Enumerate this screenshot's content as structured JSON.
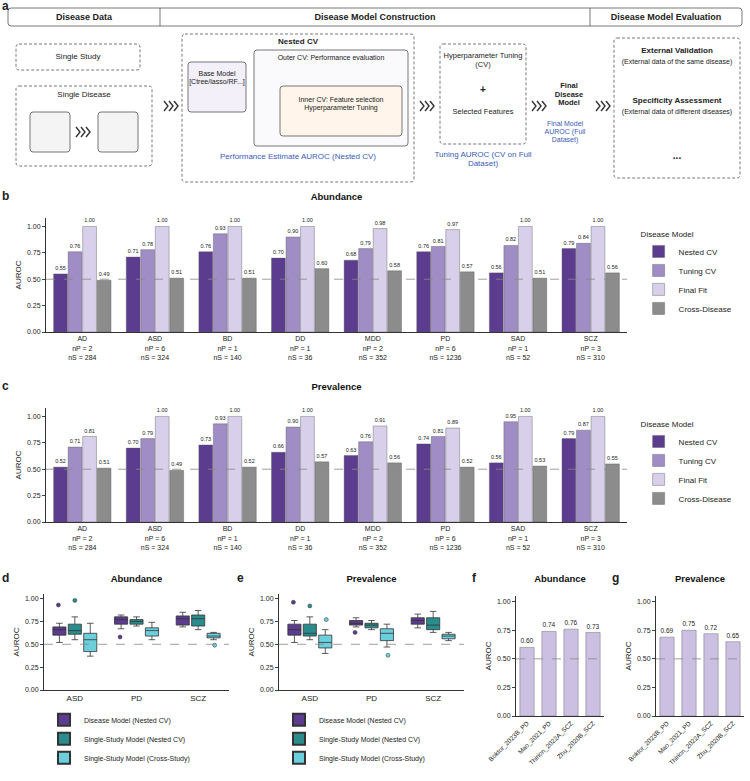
{
  "panel_a": {
    "letter": "a",
    "headers": [
      "Disease Data",
      "Disease Model Construction",
      "Disease Model Evaluation"
    ],
    "disease_data": {
      "single_study": "Single Study",
      "single_disease": "Single Disease"
    },
    "construction": {
      "nested_cv": "Nested CV",
      "base_model": "Base Model [Ctree/lasso/RF...]",
      "outer_cv": "Outer CV: Performance evaluation",
      "inner_cv": "Inner CV: Feature selection Hyperparameter Tuning",
      "nested_caption": "Performance Estimate AUROC (Nested CV)",
      "tuning": "Hyperparameter Tuning (CV)",
      "plus": "+",
      "features": "Selected Features",
      "tuning_caption": "Tuning AUROC (CV on Full Dataset)",
      "final": "Final Disease Model",
      "final_caption": "Final Model AUROC (Full Dataset)"
    },
    "evaluation": {
      "external": "External Validation",
      "external_desc": "(External data of the same disease)",
      "specificity": "Specificity Assessment",
      "specificity_desc": "(External data of different diseases)",
      "more": "..."
    }
  },
  "chart_data": [
    {
      "panel": "b",
      "type": "bar",
      "title": "Abundance",
      "y_label": "AUROC",
      "legend_title": "Disease Model",
      "legend": "right",
      "data_labels": true,
      "grid": false,
      "hline": 0.5,
      "categories": [
        "AD\nnP = 2\nnS = 284",
        "ASD\nnP = 6\nnS = 324",
        "BD\nnP = 1\nnS = 140",
        "DD\nnP = 1\nnS = 36",
        "MDD\nnP = 2\nnS = 352",
        "PD\nnP = 6\nnS = 1236",
        "SAD\nnP = 1\nnS = 52",
        "SCZ\nnP = 3\nnS = 310"
      ],
      "ylim": [
        0,
        1.08
      ],
      "yticks": [
        {
          "value": 0,
          "label": "0.00"
        },
        {
          "value": 0.25,
          "label": "0.25"
        },
        {
          "value": 0.5,
          "label": "0.50"
        },
        {
          "value": 0.75,
          "label": "0.75"
        },
        {
          "value": 1,
          "label": "1.00"
        }
      ],
      "series": [
        {
          "name": "Nested CV",
          "color": "#5b3c8f",
          "values": [
            0.55,
            0.71,
            0.76,
            0.7,
            0.68,
            0.76,
            0.56,
            0.79
          ],
          "value_labels": [
            "0.55",
            "0.71",
            "0.76",
            "0.70",
            "0.68",
            "0.76",
            "0.56",
            "0.79"
          ]
        },
        {
          "name": "Tuning CV",
          "color": "#a08dc6",
          "values": [
            0.76,
            0.78,
            0.93,
            0.9,
            0.79,
            0.81,
            0.82,
            0.84
          ],
          "value_labels": [
            "0.76",
            "0.78",
            "0.93",
            "0.90",
            "0.79",
            "0.81",
            "0.82",
            "0.84"
          ]
        },
        {
          "name": "Final Fit",
          "color": "#d8d0ea",
          "values": [
            1,
            1,
            1,
            1,
            0.98,
            0.97,
            1,
            1
          ],
          "value_labels": [
            "1.00",
            "1.00",
            "1.00",
            "1.00",
            "0.98",
            "0.97",
            "1.00",
            "1.00"
          ]
        },
        {
          "name": "Cross-Disease",
          "color": "#8c8c8c",
          "values": [
            0.49,
            0.51,
            0.51,
            0.6,
            0.58,
            0.57,
            0.51,
            0.56
          ],
          "value_labels": [
            "0.49",
            "0.51",
            "0.51",
            "0.60",
            "0.58",
            "0.57",
            "0.51",
            "0.56"
          ]
        }
      ]
    },
    {
      "panel": "c",
      "type": "bar",
      "title": "Prevalence",
      "y_label": "AUROC",
      "legend_title": "Disease Model",
      "legend": "right",
      "data_labels": true,
      "grid": false,
      "hline": 0.5,
      "categories": [
        "AD\nnP = 2\nnS = 284",
        "ASD\nnP = 6\nnS = 324",
        "BD\nnP = 1\nnS = 140",
        "DD\nnP = 1\nnS = 36",
        "MDD\nnP = 2\nnS = 352",
        "PD\nnP = 6\nnS = 1236",
        "SAD\nnP = 1\nnS = 52",
        "SCZ\nnP = 3\nnS = 310"
      ],
      "ylim": [
        0,
        1.08
      ],
      "yticks": [
        {
          "value": 0,
          "label": "0.00"
        },
        {
          "value": 0.25,
          "label": "0.25"
        },
        {
          "value": 0.5,
          "label": "0.50"
        },
        {
          "value": 0.75,
          "label": "0.75"
        },
        {
          "value": 1,
          "label": "1.00"
        }
      ],
      "series": [
        {
          "name": "Nested CV",
          "color": "#5b3c8f",
          "values": [
            0.52,
            0.7,
            0.73,
            0.66,
            0.63,
            0.74,
            0.56,
            0.79
          ],
          "value_labels": [
            "0.52",
            "0.70",
            "0.73",
            "0.66",
            "0.63",
            "0.74",
            "0.56",
            "0.79"
          ]
        },
        {
          "name": "Tuning CV",
          "color": "#a08dc6",
          "values": [
            0.71,
            0.79,
            0.93,
            0.9,
            0.76,
            0.81,
            0.95,
            0.87
          ],
          "value_labels": [
            "0.71",
            "0.79",
            "0.93",
            "0.90",
            "0.76",
            "0.81",
            "0.95",
            "0.87"
          ]
        },
        {
          "name": "Final Fit",
          "color": "#d8d0ea",
          "values": [
            0.81,
            1,
            1,
            1,
            0.91,
            0.89,
            1,
            1
          ],
          "value_labels": [
            "0.81",
            "1.00",
            "1.00",
            "1.00",
            "0.91",
            "0.89",
            "1.00",
            "1.00"
          ]
        },
        {
          "name": "Cross-Disease",
          "color": "#8c8c8c",
          "values": [
            0.51,
            0.49,
            0.52,
            0.57,
            0.56,
            0.52,
            0.53,
            0.55
          ],
          "value_labels": [
            "0.51",
            "0.49",
            "0.52",
            "0.57",
            "0.56",
            "0.52",
            "0.53",
            "0.55"
          ]
        }
      ]
    },
    {
      "panel": "d",
      "type": "box",
      "title": "Abundance",
      "y_label": "AUROC",
      "legend": "bottom",
      "grid": false,
      "hline": 0.5,
      "categories": [
        "ASD",
        "PD",
        "SCZ"
      ],
      "ylim": [
        0,
        1.05
      ],
      "yticks": [
        {
          "value": 0,
          "label": "0.00"
        },
        {
          "value": 0.25,
          "label": "0.25"
        },
        {
          "value": 0.5,
          "label": "0.50"
        },
        {
          "value": 0.75,
          "label": "0.75"
        },
        {
          "value": 1,
          "label": "1.00"
        }
      ],
      "series": [
        {
          "name": "Disease Model (Nested CV)",
          "color": "#5b3c8f",
          "q1": [
            0.6,
            0.72,
            0.71
          ],
          "median": [
            0.66,
            0.77,
            0.78
          ],
          "q3": [
            0.69,
            0.8,
            0.81
          ],
          "lowerfence": [
            0.52,
            0.67,
            0.69
          ],
          "upperfence": [
            0.73,
            0.82,
            0.85
          ],
          "outliers": [
            [
              0.93
            ],
            [
              0.58
            ],
            []
          ]
        },
        {
          "name": "Single-Study Model (Nested CV)",
          "color": "#2a8c8c",
          "q1": [
            0.61,
            0.72,
            0.7
          ],
          "median": [
            0.65,
            0.75,
            0.78
          ],
          "q3": [
            0.72,
            0.77,
            0.82
          ],
          "lowerfence": [
            0.55,
            0.7,
            0.66
          ],
          "upperfence": [
            0.8,
            0.8,
            0.87
          ],
          "outliers": [
            [
              0.98
            ],
            [],
            []
          ]
        },
        {
          "name": "Single-Study Model (Cross-Study)",
          "color": "#6ccfdc",
          "q1": [
            0.42,
            0.59,
            0.57
          ],
          "median": [
            0.55,
            0.65,
            0.59
          ],
          "q3": [
            0.62,
            0.68,
            0.62
          ],
          "lowerfence": [
            0.37,
            0.55,
            0.55
          ],
          "upperfence": [
            0.73,
            0.74,
            0.63
          ],
          "outliers": [
            [],
            [],
            [
              0.49
            ]
          ]
        }
      ]
    },
    {
      "panel": "e",
      "type": "box",
      "title": "Prevalence",
      "y_label": "AUROC",
      "legend": "bottom",
      "grid": false,
      "hline": 0.5,
      "categories": [
        "ASD",
        "PD",
        "SCZ"
      ],
      "ylim": [
        0,
        1.05
      ],
      "yticks": [
        {
          "value": 0,
          "label": "0.00"
        },
        {
          "value": 0.25,
          "label": "0.25"
        },
        {
          "value": 0.5,
          "label": "0.50"
        },
        {
          "value": 0.75,
          "label": "0.75"
        },
        {
          "value": 1,
          "label": "1.00"
        }
      ],
      "series": [
        {
          "name": "Disease Model (Nested CV)",
          "color": "#5b3c8f",
          "q1": [
            0.6,
            0.71,
            0.72
          ],
          "median": [
            0.66,
            0.73,
            0.76
          ],
          "q3": [
            0.72,
            0.76,
            0.79
          ],
          "lowerfence": [
            0.52,
            0.69,
            0.68
          ],
          "upperfence": [
            0.76,
            0.79,
            0.83
          ],
          "outliers": [
            [
              0.96
            ],
            [
              0.63
            ],
            []
          ]
        },
        {
          "name": "Single-Study Model (Nested CV)",
          "color": "#2a8c8c",
          "q1": [
            0.59,
            0.68,
            0.66
          ],
          "median": [
            0.62,
            0.71,
            0.71
          ],
          "q3": [
            0.72,
            0.73,
            0.79
          ],
          "lowerfence": [
            0.55,
            0.66,
            0.63
          ],
          "upperfence": [
            0.8,
            0.76,
            0.86
          ],
          "outliers": [
            [
              0.92
            ],
            [],
            []
          ]
        },
        {
          "name": "Single-Study Model (Cross-Study)",
          "color": "#6ccfdc",
          "q1": [
            0.46,
            0.54,
            0.56
          ],
          "median": [
            0.52,
            0.62,
            0.59
          ],
          "q3": [
            0.6,
            0.67,
            0.61
          ],
          "lowerfence": [
            0.4,
            0.47,
            0.54
          ],
          "upperfence": [
            0.66,
            0.72,
            0.63
          ],
          "outliers": [
            [
              0.77
            ],
            [
              0.38
            ],
            []
          ]
        }
      ]
    },
    {
      "panel": "f",
      "type": "bar",
      "title": "Abundance",
      "y_label": "AUROC",
      "data_labels": true,
      "grid": false,
      "hline": 0.5,
      "color": "#cbc0e2",
      "categories": [
        "Boktor_2023B_PD",
        "Mao_2021_PD",
        "Thirion_2022A_SCZ",
        "Zhu_2020B_SCZ"
      ],
      "ylim": [
        0,
        1.05
      ],
      "yticks": [
        {
          "value": 0,
          "label": "0.00"
        },
        {
          "value": 0.25,
          "label": "0.25"
        },
        {
          "value": 0.5,
          "label": "0.50"
        },
        {
          "value": 0.75,
          "label": "0.75"
        },
        {
          "value": 1,
          "label": "1.00"
        }
      ],
      "values": [
        0.6,
        0.74,
        0.76,
        0.73
      ],
      "value_labels": [
        "0.60",
        "0.74",
        "0.76",
        "0.73"
      ]
    },
    {
      "panel": "g",
      "type": "bar",
      "title": "Prevalence",
      "y_label": "AUROC",
      "data_labels": true,
      "grid": false,
      "hline": 0.5,
      "color": "#cbc0e2",
      "categories": [
        "Boktor_2023B_PD",
        "Mao_2021_PD",
        "Thirion_2022A_SCZ",
        "Zhu_2020B_SCZ"
      ],
      "ylim": [
        0,
        1.05
      ],
      "yticks": [
        {
          "value": 0,
          "label": "0.00"
        },
        {
          "value": 0.25,
          "label": "0.25"
        },
        {
          "value": 0.5,
          "label": "0.50"
        },
        {
          "value": 0.75,
          "label": "0.75"
        },
        {
          "value": 1,
          "label": "1.00"
        }
      ],
      "values": [
        0.69,
        0.75,
        0.72,
        0.65
      ],
      "value_labels": [
        "0.69",
        "0.75",
        "0.72",
        "0.65"
      ]
    }
  ]
}
